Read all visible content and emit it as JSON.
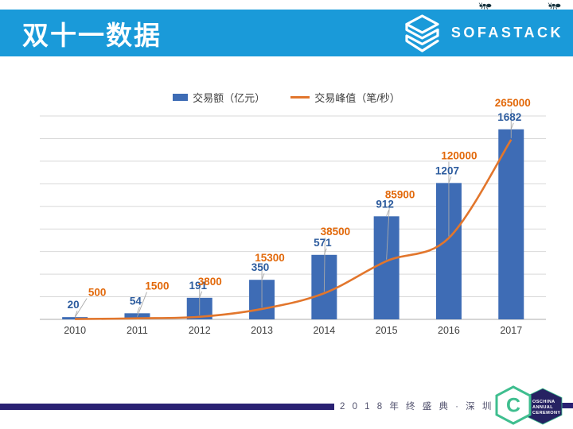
{
  "header": {
    "title": "双十一数据",
    "brand": "SOFASTACK",
    "banner_color": "#1a9ad9",
    "icons": {
      "brand_icon": "sofastack-stack-icon",
      "top_decoration": "ant-icon"
    }
  },
  "chart_data": {
    "type": "bar+line combo",
    "categories": [
      "2010",
      "2011",
      "2012",
      "2013",
      "2014",
      "2015",
      "2016",
      "2017"
    ],
    "series": [
      {
        "name": "交易额（亿元）",
        "type": "bar",
        "color": "#3e6cb5",
        "label_color": "#2d5c9e",
        "values": [
          20,
          54,
          191,
          350,
          571,
          912,
          1207,
          1682
        ],
        "axis": "left",
        "axis_max": 1800
      },
      {
        "name": "交易峰值（笔/秒）",
        "type": "line",
        "color": "#e2762c",
        "label_color": "#e2690b",
        "values": [
          500,
          1500,
          3800,
          15300,
          38500,
          85900,
          120000,
          265000
        ],
        "axis": "right",
        "axis_max": 300000
      }
    ],
    "title": "",
    "xlabel": "",
    "ylabel": "",
    "axes_visible": false,
    "data_labels": true,
    "grid": true,
    "gridline_count": 9,
    "gridline_color": "#d9d9d9",
    "baseline_color": "#bdbdbd",
    "leader_line_color": "#a9a9a9",
    "x_label_color": "#3f3f3f",
    "legend_position": "top"
  },
  "footer": {
    "event_text": "2 0 1 8 年 终 盛 典 · 深 圳",
    "logo_letter": "C",
    "badge": [
      "OSCHINA",
      "ANNUAL",
      "CEREMONY"
    ],
    "bar_color": "#2a2173",
    "green": "#3fbe8f",
    "navy": "#262262"
  }
}
